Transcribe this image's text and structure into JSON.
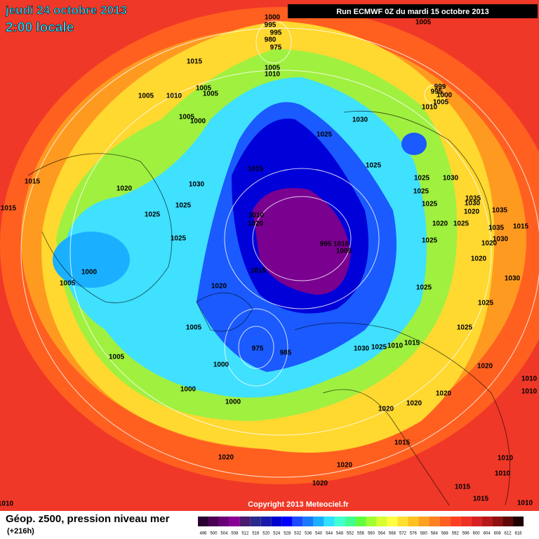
{
  "header": {
    "date": "jeudi 24 octobre 2013",
    "time": "2:00 locale",
    "run": "Run ECMWF 0Z du mardi 15 octobre 2013"
  },
  "map": {
    "isobar_labels": [
      1000,
      995,
      995,
      980,
      975,
      1005,
      1015,
      1005,
      1010,
      1005,
      1010,
      1005,
      1005,
      1005,
      1000,
      999,
      995,
      1000,
      1005,
      1010,
      1030,
      1025,
      1025,
      1015,
      1030,
      1020,
      1015,
      1015,
      1025,
      1025,
      1025,
      1030,
      1025,
      1025,
      1020,
      1025,
      1020,
      1035,
      1030,
      1035,
      1015,
      1035,
      1030,
      1020,
      1010,
      1020,
      1025,
      1025,
      1020,
      1030,
      1000,
      1005,
      995,
      1010,
      1005,
      1015,
      1020,
      1025,
      1025,
      1025,
      1005,
      1030,
      1025,
      1010,
      1015,
      975,
      985,
      1005,
      1000,
      1000,
      1000,
      1020,
      1020,
      1020,
      1020,
      1015,
      1010,
      1010,
      1020,
      1020,
      1020,
      1010,
      1010,
      1015,
      1015,
      1010,
      1010
    ]
  },
  "footer": {
    "copyright": "Copyright 2013 Meteociel.fr",
    "title": "Géop. z500, pression niveau mer",
    "lead": "(+216h)"
  },
  "legend": {
    "values": [
      496,
      500,
      504,
      508,
      512,
      516,
      520,
      524,
      528,
      532,
      536,
      540,
      544,
      548,
      552,
      556,
      560,
      564,
      568,
      572,
      576,
      580,
      584,
      588,
      592,
      596,
      600,
      604,
      608,
      612,
      616
    ],
    "colors": [
      "#2a0033",
      "#4b0055",
      "#6a0078",
      "#8a0096",
      "#4a1a6e",
      "#2a2a8a",
      "#1a1aaa",
      "#0000d0",
      "#0000ff",
      "#1a4bff",
      "#1a7aff",
      "#1ab0ff",
      "#30e0ff",
      "#40ffd0",
      "#40ff90",
      "#60ff40",
      "#a0ff30",
      "#d8ff30",
      "#ffff40",
      "#ffe030",
      "#ffc020",
      "#ffa020",
      "#ff8020",
      "#ff6020",
      "#ff4020",
      "#f03020",
      "#d82020",
      "#b81818",
      "#901010",
      "#600808",
      "#200000"
    ]
  }
}
